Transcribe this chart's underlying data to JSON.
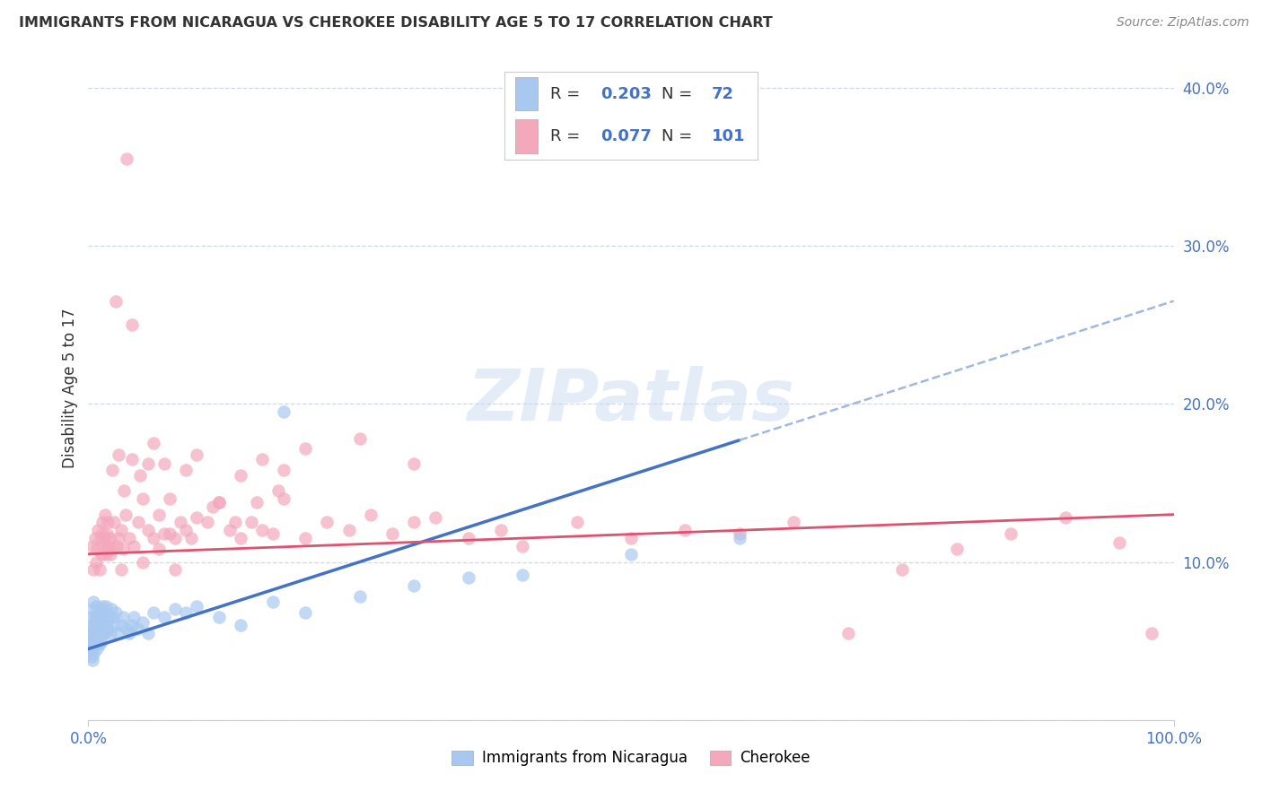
{
  "title": "IMMIGRANTS FROM NICARAGUA VS CHEROKEE DISABILITY AGE 5 TO 17 CORRELATION CHART",
  "source": "Source: ZipAtlas.com",
  "ylabel": "Disability Age 5 to 17",
  "legend1_label": "Immigrants from Nicaragua",
  "legend2_label": "Cherokee",
  "R1": 0.203,
  "N1": 72,
  "R2": 0.077,
  "N2": 101,
  "blue_scatter_color": "#a8c8f0",
  "pink_scatter_color": "#f4a8bc",
  "blue_line_color": "#4472c4",
  "pink_line_color": "#e05070",
  "blue_dash_color": "#a0b8e0",
  "watermark_color": "#c8daf0",
  "ytick_color": "#4472c4",
  "xtick_color": "#4472c4",
  "grid_color": "#d0d8e8",
  "title_color": "#333333",
  "source_color": "#888888",
  "legend_text_color": "#333333",
  "legend_value_color": "#4472c4",
  "xlim": [
    0.0,
    1.0
  ],
  "ylim": [
    0.0,
    0.42
  ],
  "ytick_vals": [
    0.0,
    0.1,
    0.2,
    0.3,
    0.4
  ],
  "ytick_labels": [
    "",
    "10.0%",
    "20.0%",
    "30.0%",
    "40.0%"
  ],
  "blue_intercept": 0.045,
  "blue_slope": 0.22,
  "pink_intercept": 0.105,
  "pink_slope": 0.025,
  "blue_x": [
    0.001,
    0.002,
    0.002,
    0.003,
    0.003,
    0.003,
    0.004,
    0.004,
    0.004,
    0.004,
    0.005,
    0.005,
    0.005,
    0.005,
    0.006,
    0.006,
    0.006,
    0.007,
    0.007,
    0.007,
    0.008,
    0.008,
    0.008,
    0.009,
    0.009,
    0.01,
    0.01,
    0.01,
    0.011,
    0.011,
    0.012,
    0.012,
    0.013,
    0.013,
    0.014,
    0.015,
    0.015,
    0.016,
    0.017,
    0.018,
    0.019,
    0.02,
    0.021,
    0.022,
    0.024,
    0.025,
    0.027,
    0.03,
    0.032,
    0.035,
    0.038,
    0.04,
    0.042,
    0.045,
    0.05,
    0.055,
    0.06,
    0.07,
    0.08,
    0.09,
    0.1,
    0.12,
    0.14,
    0.17,
    0.2,
    0.25,
    0.3,
    0.35,
    0.4,
    0.5,
    0.6,
    0.18
  ],
  "blue_y": [
    0.055,
    0.06,
    0.045,
    0.05,
    0.065,
    0.04,
    0.055,
    0.07,
    0.048,
    0.038,
    0.06,
    0.05,
    0.075,
    0.042,
    0.055,
    0.065,
    0.048,
    0.06,
    0.05,
    0.072,
    0.055,
    0.065,
    0.045,
    0.06,
    0.05,
    0.068,
    0.055,
    0.048,
    0.07,
    0.058,
    0.062,
    0.05,
    0.055,
    0.072,
    0.06,
    0.068,
    0.055,
    0.072,
    0.062,
    0.058,
    0.065,
    0.055,
    0.07,
    0.065,
    0.06,
    0.068,
    0.055,
    0.06,
    0.065,
    0.058,
    0.055,
    0.06,
    0.065,
    0.058,
    0.062,
    0.055,
    0.068,
    0.065,
    0.07,
    0.068,
    0.072,
    0.065,
    0.06,
    0.075,
    0.068,
    0.078,
    0.085,
    0.09,
    0.092,
    0.105,
    0.115,
    0.195
  ],
  "pink_x": [
    0.004,
    0.005,
    0.006,
    0.007,
    0.008,
    0.009,
    0.01,
    0.011,
    0.012,
    0.013,
    0.014,
    0.015,
    0.016,
    0.017,
    0.018,
    0.019,
    0.02,
    0.022,
    0.024,
    0.026,
    0.028,
    0.03,
    0.032,
    0.034,
    0.038,
    0.042,
    0.046,
    0.05,
    0.055,
    0.06,
    0.065,
    0.07,
    0.075,
    0.08,
    0.09,
    0.1,
    0.11,
    0.12,
    0.13,
    0.14,
    0.15,
    0.16,
    0.17,
    0.18,
    0.2,
    0.22,
    0.24,
    0.26,
    0.28,
    0.3,
    0.32,
    0.35,
    0.38,
    0.4,
    0.45,
    0.5,
    0.55,
    0.6,
    0.65,
    0.7,
    0.75,
    0.8,
    0.85,
    0.9,
    0.95,
    0.98,
    0.03,
    0.04,
    0.05,
    0.06,
    0.07,
    0.08,
    0.09,
    0.1,
    0.12,
    0.14,
    0.16,
    0.18,
    0.2,
    0.25,
    0.3,
    0.04,
    0.035,
    0.025,
    0.015,
    0.02,
    0.013,
    0.018,
    0.022,
    0.028,
    0.033,
    0.048,
    0.055,
    0.065,
    0.075,
    0.085,
    0.095,
    0.115,
    0.135,
    0.155,
    0.175
  ],
  "pink_y": [
    0.11,
    0.095,
    0.115,
    0.1,
    0.108,
    0.12,
    0.095,
    0.115,
    0.105,
    0.125,
    0.11,
    0.13,
    0.105,
    0.118,
    0.125,
    0.11,
    0.115,
    0.108,
    0.125,
    0.11,
    0.115,
    0.12,
    0.108,
    0.13,
    0.115,
    0.11,
    0.125,
    0.14,
    0.12,
    0.115,
    0.13,
    0.118,
    0.14,
    0.115,
    0.12,
    0.128,
    0.125,
    0.138,
    0.12,
    0.115,
    0.125,
    0.12,
    0.118,
    0.14,
    0.115,
    0.125,
    0.12,
    0.13,
    0.118,
    0.125,
    0.128,
    0.115,
    0.12,
    0.11,
    0.125,
    0.115,
    0.12,
    0.118,
    0.125,
    0.055,
    0.095,
    0.108,
    0.118,
    0.128,
    0.112,
    0.055,
    0.095,
    0.165,
    0.1,
    0.175,
    0.162,
    0.095,
    0.158,
    0.168,
    0.138,
    0.155,
    0.165,
    0.158,
    0.172,
    0.178,
    0.162,
    0.25,
    0.355,
    0.265,
    0.115,
    0.105,
    0.118,
    0.108,
    0.158,
    0.168,
    0.145,
    0.155,
    0.162,
    0.108,
    0.118,
    0.125,
    0.115,
    0.135,
    0.125,
    0.138,
    0.145
  ]
}
